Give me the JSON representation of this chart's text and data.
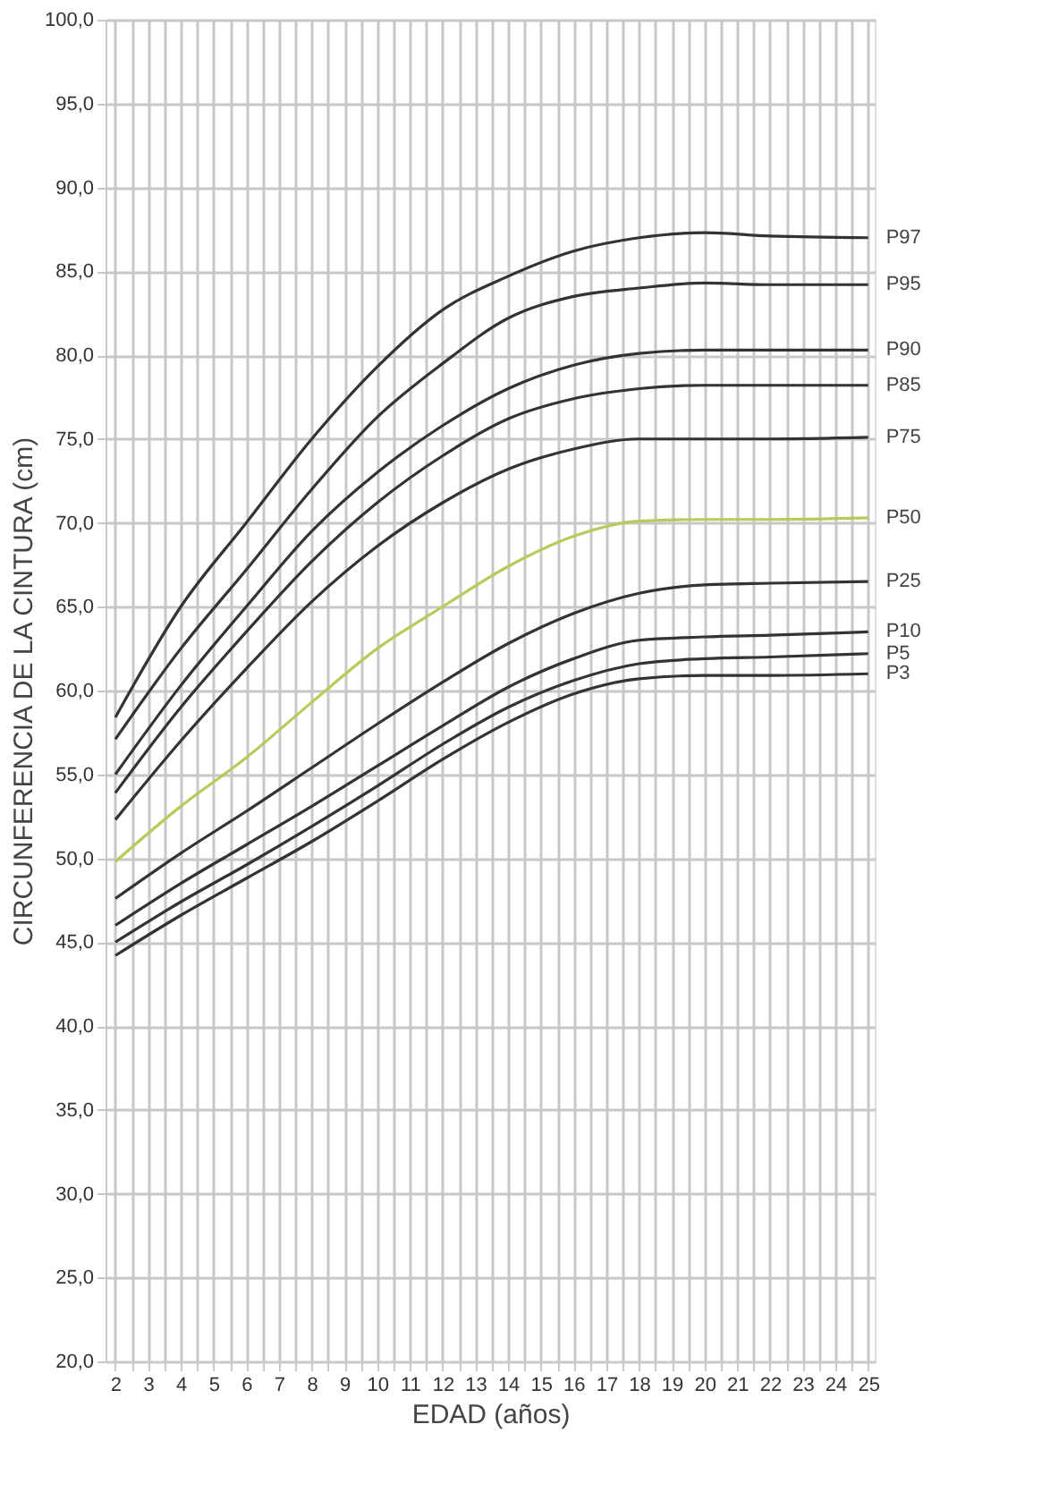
{
  "chart_data": {
    "type": "line",
    "xlabel": "EDAD (años)",
    "ylabel": "CIRCUNFERENCIA DE LA CINTURA (cm)",
    "x": [
      2,
      4,
      6,
      8,
      10,
      12,
      14,
      16,
      18,
      20,
      22,
      25
    ],
    "series": [
      {
        "name": "P97",
        "color": "#333333",
        "values": [
          58.4,
          65.0,
          70.0,
          75.0,
          79.3,
          82.7,
          84.7,
          86.2,
          87.0,
          87.3,
          87.1,
          87.0
        ]
      },
      {
        "name": "P95",
        "color": "#333333",
        "values": [
          57.1,
          62.5,
          67.2,
          72.0,
          76.3,
          79.5,
          82.2,
          83.5,
          84.0,
          84.3,
          84.2,
          84.2
        ]
      },
      {
        "name": "P90",
        "color": "#333333",
        "values": [
          55.0,
          60.3,
          65.0,
          69.5,
          73.0,
          75.8,
          78.0,
          79.4,
          80.1,
          80.3,
          80.3,
          80.3
        ]
      },
      {
        "name": "P85",
        "color": "#333333",
        "values": [
          53.9,
          59.0,
          63.5,
          67.7,
          71.2,
          74.0,
          76.2,
          77.4,
          78.0,
          78.2,
          78.2,
          78.2
        ]
      },
      {
        "name": "P75",
        "color": "#333333",
        "values": [
          52.3,
          57.0,
          61.3,
          65.3,
          68.6,
          71.2,
          73.2,
          74.4,
          75.0,
          75.0,
          75.0,
          75.1
        ]
      },
      {
        "name": "P50",
        "color": "#b5cc5a",
        "values": [
          49.8,
          53.1,
          56.0,
          59.3,
          62.5,
          65.0,
          67.4,
          69.2,
          70.1,
          70.2,
          70.2,
          70.3
        ]
      },
      {
        "name": "P25",
        "color": "#333333",
        "values": [
          47.6,
          50.3,
          52.8,
          55.4,
          58.0,
          60.5,
          62.8,
          64.6,
          65.8,
          66.3,
          66.4,
          66.5
        ]
      },
      {
        "name": "P10",
        "color": "#333333",
        "values": [
          46.0,
          48.5,
          50.8,
          53.1,
          55.5,
          57.9,
          60.2,
          61.9,
          63.0,
          63.2,
          63.3,
          63.5
        ]
      },
      {
        "name": "P5",
        "color": "#333333",
        "values": [
          45.0,
          47.4,
          49.6,
          51.9,
          54.3,
          56.8,
          59.0,
          60.6,
          61.6,
          61.9,
          62.0,
          62.2
        ]
      },
      {
        "name": "P3",
        "color": "#333333",
        "values": [
          44.2,
          46.6,
          48.8,
          51.0,
          53.4,
          55.9,
          58.1,
          59.8,
          60.7,
          60.9,
          60.9,
          61.0
        ]
      }
    ],
    "xlim": [
      1.7,
      25.2
    ],
    "xticks": [
      2,
      {
        "value": 2.5,
        "label": null
      },
      3,
      {
        "value": 3.5,
        "label": null
      },
      4,
      {
        "value": 4.5,
        "label": null
      },
      5,
      {
        "value": 5.5,
        "label": null
      },
      6,
      {
        "value": 6.5,
        "label": null
      },
      7,
      {
        "value": 7.5,
        "label": null
      },
      8,
      {
        "value": 8.5,
        "label": null
      },
      9,
      {
        "value": 9.5,
        "label": null
      },
      10,
      {
        "value": 10.5,
        "label": null
      },
      11,
      {
        "value": 11.5,
        "label": null
      },
      12,
      {
        "value": 12.5,
        "label": null
      },
      13,
      {
        "value": 13.5,
        "label": null
      },
      14,
      {
        "value": 14.5,
        "label": null
      },
      15,
      {
        "value": 15.5,
        "label": null
      },
      16,
      {
        "value": 16.5,
        "label": null
      },
      17,
      {
        "value": 17.5,
        "label": null
      },
      18,
      {
        "value": 18.5,
        "label": null
      },
      19,
      {
        "value": 19.5,
        "label": null
      },
      20,
      {
        "value": 20.5,
        "label": null
      },
      21,
      {
        "value": 21.5,
        "label": null
      },
      22,
      {
        "value": 22.5,
        "label": null
      },
      23,
      {
        "value": 23.5,
        "label": null
      },
      24,
      {
        "value": 24.5,
        "label": null
      },
      25
    ],
    "ylim": [
      20,
      100
    ],
    "yticks": [
      {
        "value": 20,
        "label": "20,0"
      },
      {
        "value": 25,
        "label": "25,0"
      },
      {
        "value": 30,
        "label": "30,0"
      },
      {
        "value": 35,
        "label": "35,0"
      },
      {
        "value": 40,
        "label": "40,0"
      },
      {
        "value": 45,
        "label": "45,0"
      },
      {
        "value": 50,
        "label": "50,0"
      },
      {
        "value": 55,
        "label": "55,0"
      },
      {
        "value": 60,
        "label": "60,0"
      },
      {
        "value": 65,
        "label": "65,0"
      },
      {
        "value": 70,
        "label": "70,0"
      },
      {
        "value": 75,
        "label": "75,0"
      },
      {
        "value": 80,
        "label": "80,0"
      },
      {
        "value": 85,
        "label": "85,0"
      },
      {
        "value": 90,
        "label": "90,0"
      },
      {
        "value": 95,
        "label": "95,0"
      },
      {
        "value": 100,
        "label": "100,0"
      }
    ],
    "grid": true,
    "legend": false,
    "marker": "none",
    "line_style": "solid"
  }
}
